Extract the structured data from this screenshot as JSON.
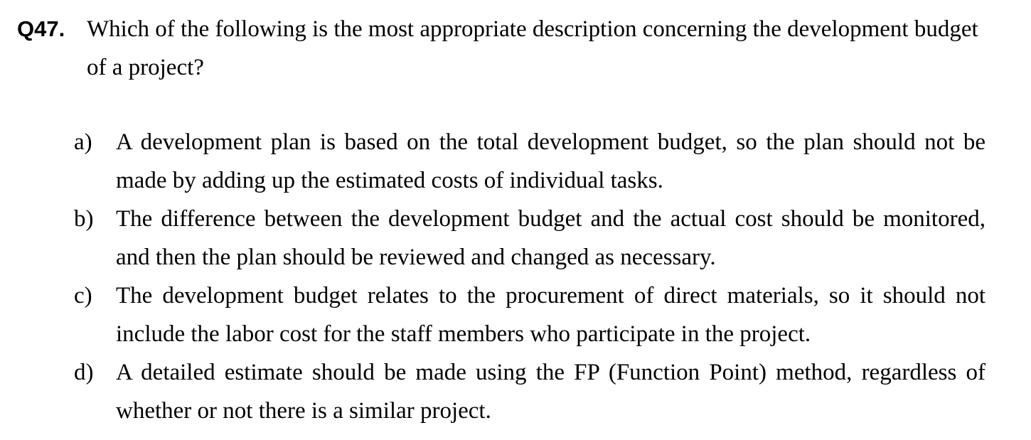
{
  "question": {
    "number": "Q47.",
    "stem": "Which of the following is the most appropriate description concerning the development budget of a project?"
  },
  "options": [
    {
      "letter": "a)",
      "text": "A development plan is based on the total development budget, so the plan should not be made by adding up the estimated costs of individual tasks."
    },
    {
      "letter": "b)",
      "text": "The difference between the development budget and the actual cost should be monitored, and then the plan should be reviewed and changed as necessary."
    },
    {
      "letter": "c)",
      "text": "The development budget relates to the procurement of direct materials, so it should not include the labor cost for the staff members who participate in the project."
    },
    {
      "letter": "d)",
      "text": "A detailed estimate should be made using the FP (Function Point) method, regardless of whether or not there is a similar project."
    }
  ]
}
